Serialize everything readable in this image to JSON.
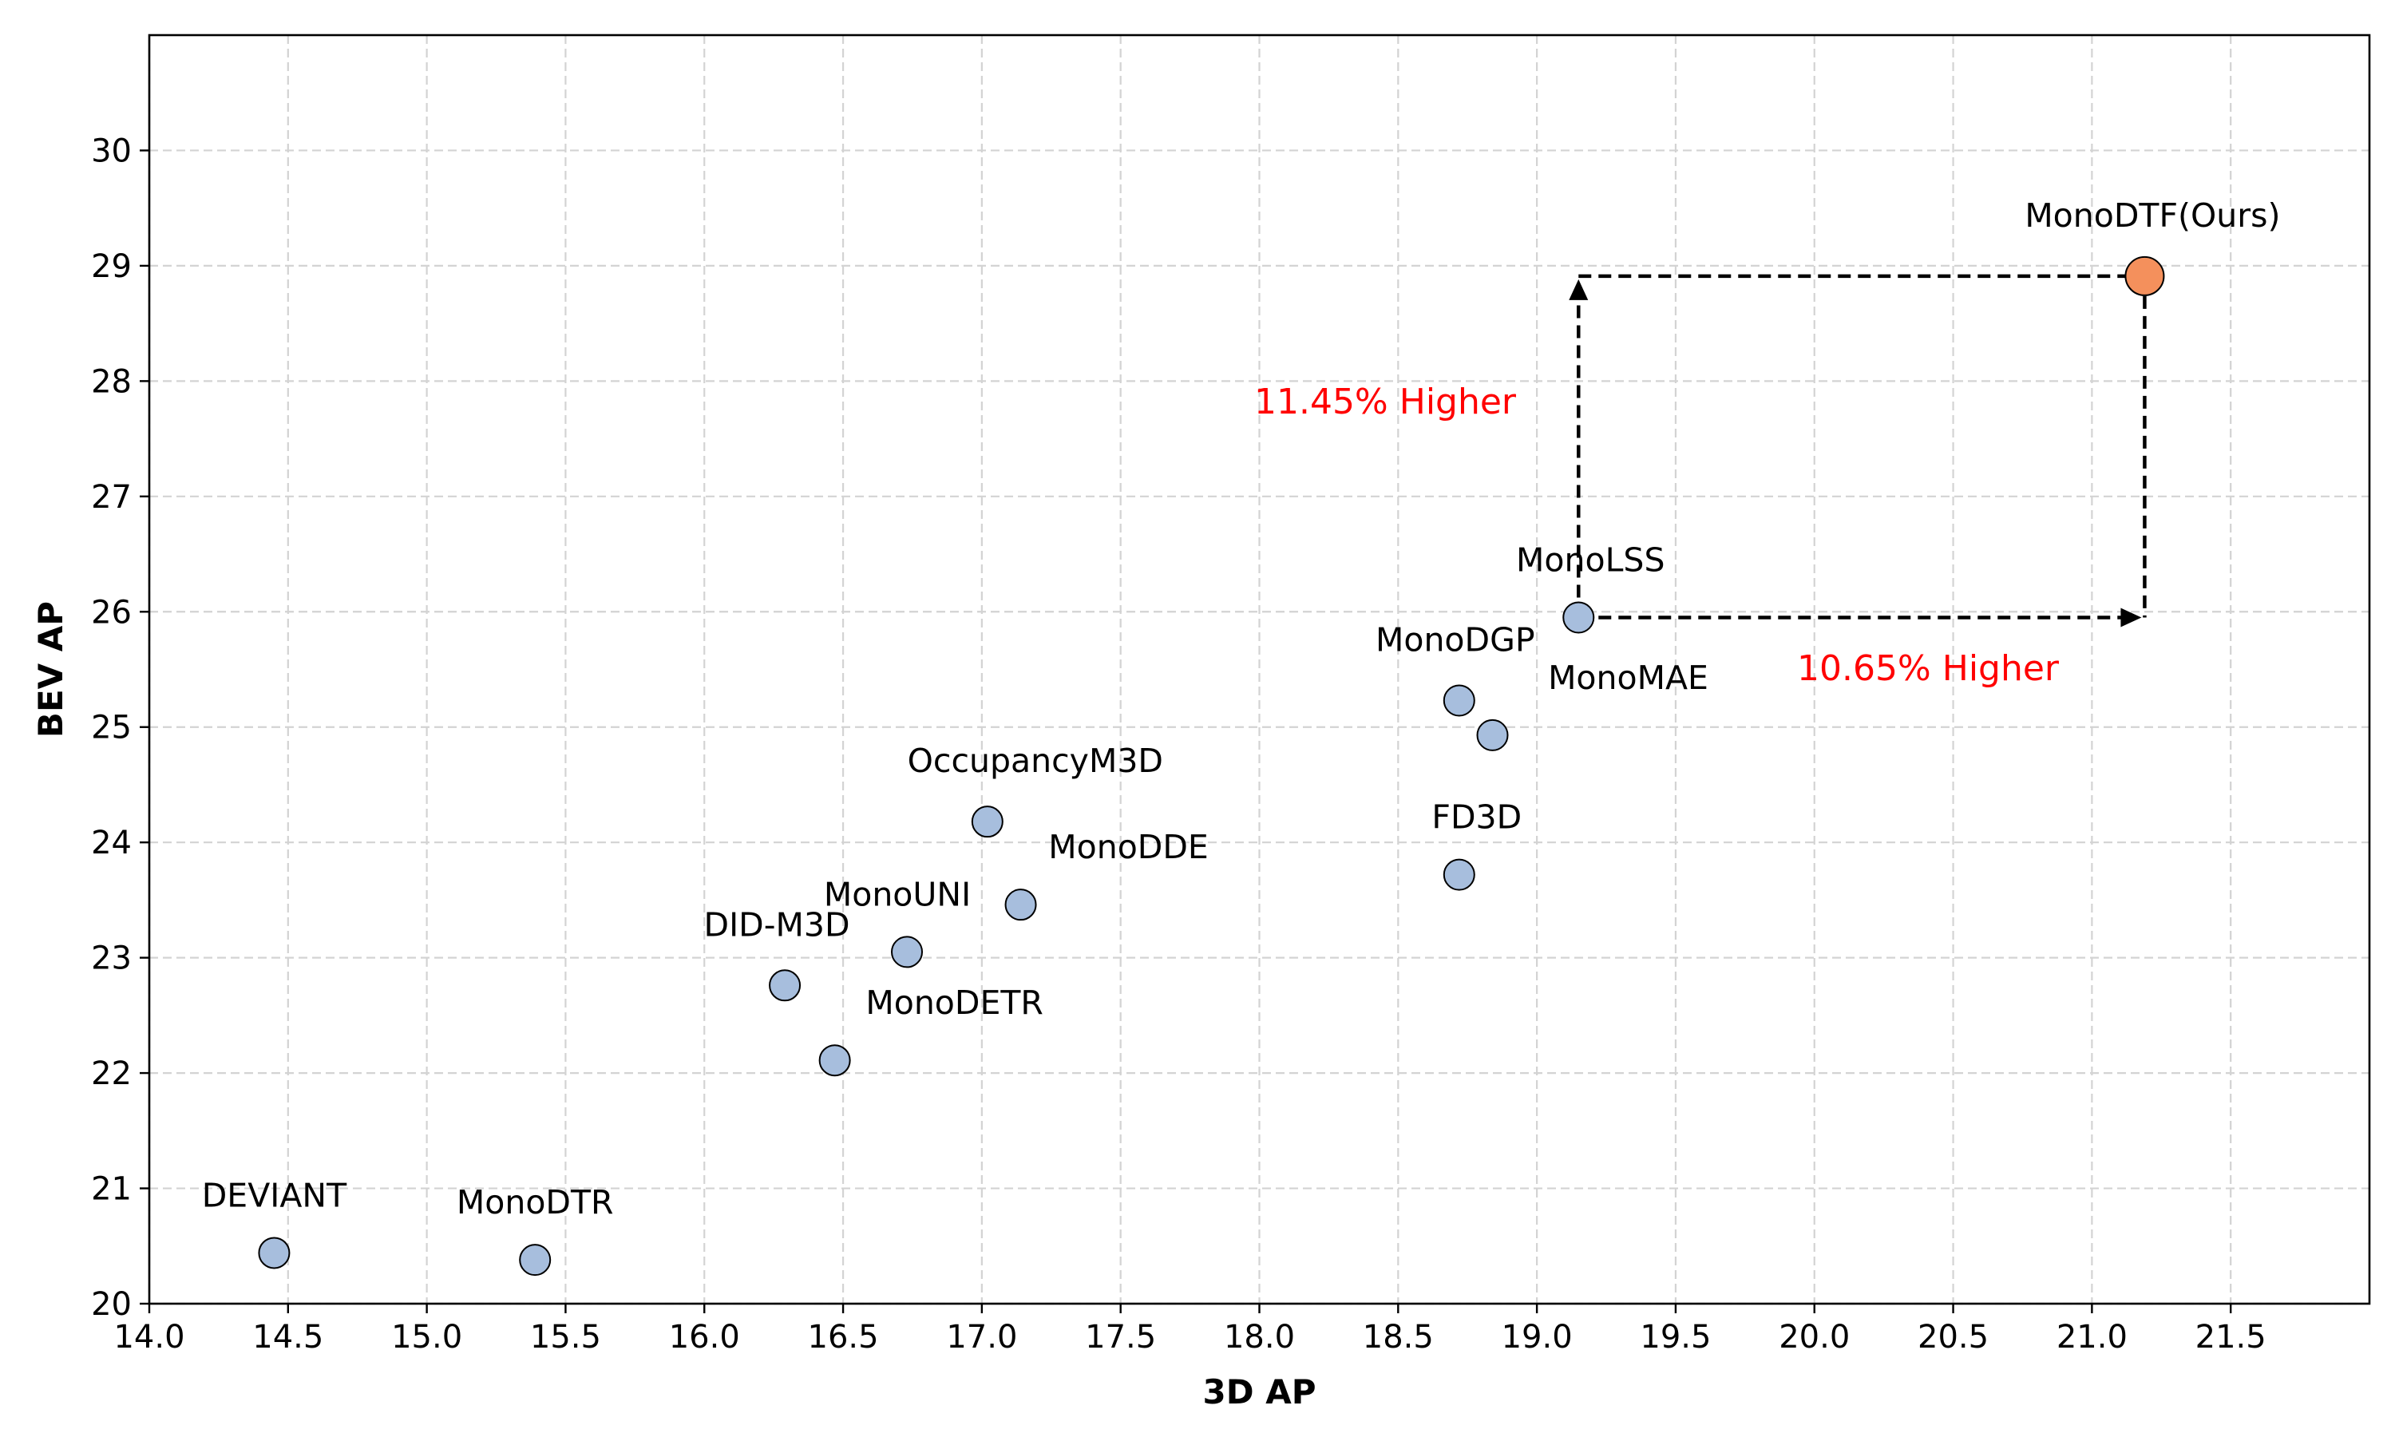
{
  "chart_data": {
    "type": "scatter",
    "title": "",
    "xlabel": "3D AP",
    "ylabel": "BEV AP",
    "xlim": [
      14.0,
      22.0
    ],
    "ylim": [
      20.0,
      31.0
    ],
    "xticks": [
      "14.0",
      "14.5",
      "15.0",
      "15.5",
      "16.0",
      "16.5",
      "17.0",
      "17.5",
      "18.0",
      "18.5",
      "19.0",
      "19.5",
      "20.0",
      "20.5",
      "21.0",
      "21.5"
    ],
    "yticks": [
      "20",
      "21",
      "22",
      "23",
      "24",
      "25",
      "26",
      "27",
      "28",
      "29",
      "30"
    ],
    "grid": true,
    "points": [
      {
        "label": "DEVIANT",
        "x": 14.45,
        "y": 20.44,
        "color": "#a7bedd",
        "highlight": false
      },
      {
        "label": "MonoDTR",
        "x": 15.39,
        "y": 20.38,
        "color": "#a7bedd",
        "highlight": false
      },
      {
        "label": "DID-M3D",
        "x": 16.29,
        "y": 22.76,
        "color": "#a7bedd",
        "highlight": false
      },
      {
        "label": "MonoDETR",
        "x": 16.47,
        "y": 22.11,
        "color": "#a7bedd",
        "highlight": false
      },
      {
        "label": "MonoUNI",
        "x": 16.73,
        "y": 23.05,
        "color": "#a7bedd",
        "highlight": false
      },
      {
        "label": "OccupancyM3D",
        "x": 17.02,
        "y": 24.18,
        "color": "#a7bedd",
        "highlight": false
      },
      {
        "label": "MonoDDE",
        "x": 17.14,
        "y": 23.46,
        "color": "#a7bedd",
        "highlight": false
      },
      {
        "label": "MonoDGP",
        "x": 18.72,
        "y": 25.23,
        "color": "#a7bedd",
        "highlight": false
      },
      {
        "label": "MonoMAE",
        "x": 18.84,
        "y": 24.93,
        "color": "#a7bedd",
        "highlight": false
      },
      {
        "label": "FD3D",
        "x": 18.72,
        "y": 23.72,
        "color": "#a7bedd",
        "highlight": false
      },
      {
        "label": "MonoLSS",
        "x": 19.15,
        "y": 25.95,
        "color": "#a7bedd",
        "highlight": false
      },
      {
        "label": "MonoDTF(Ours)",
        "x": 21.19,
        "y": 28.91,
        "color": "#f4905c",
        "highlight": true
      }
    ],
    "annotations": [
      {
        "text": "11.45% Higher",
        "color": "#ff0000"
      },
      {
        "text": "10.65% Higher",
        "color": "#ff0000"
      }
    ]
  }
}
